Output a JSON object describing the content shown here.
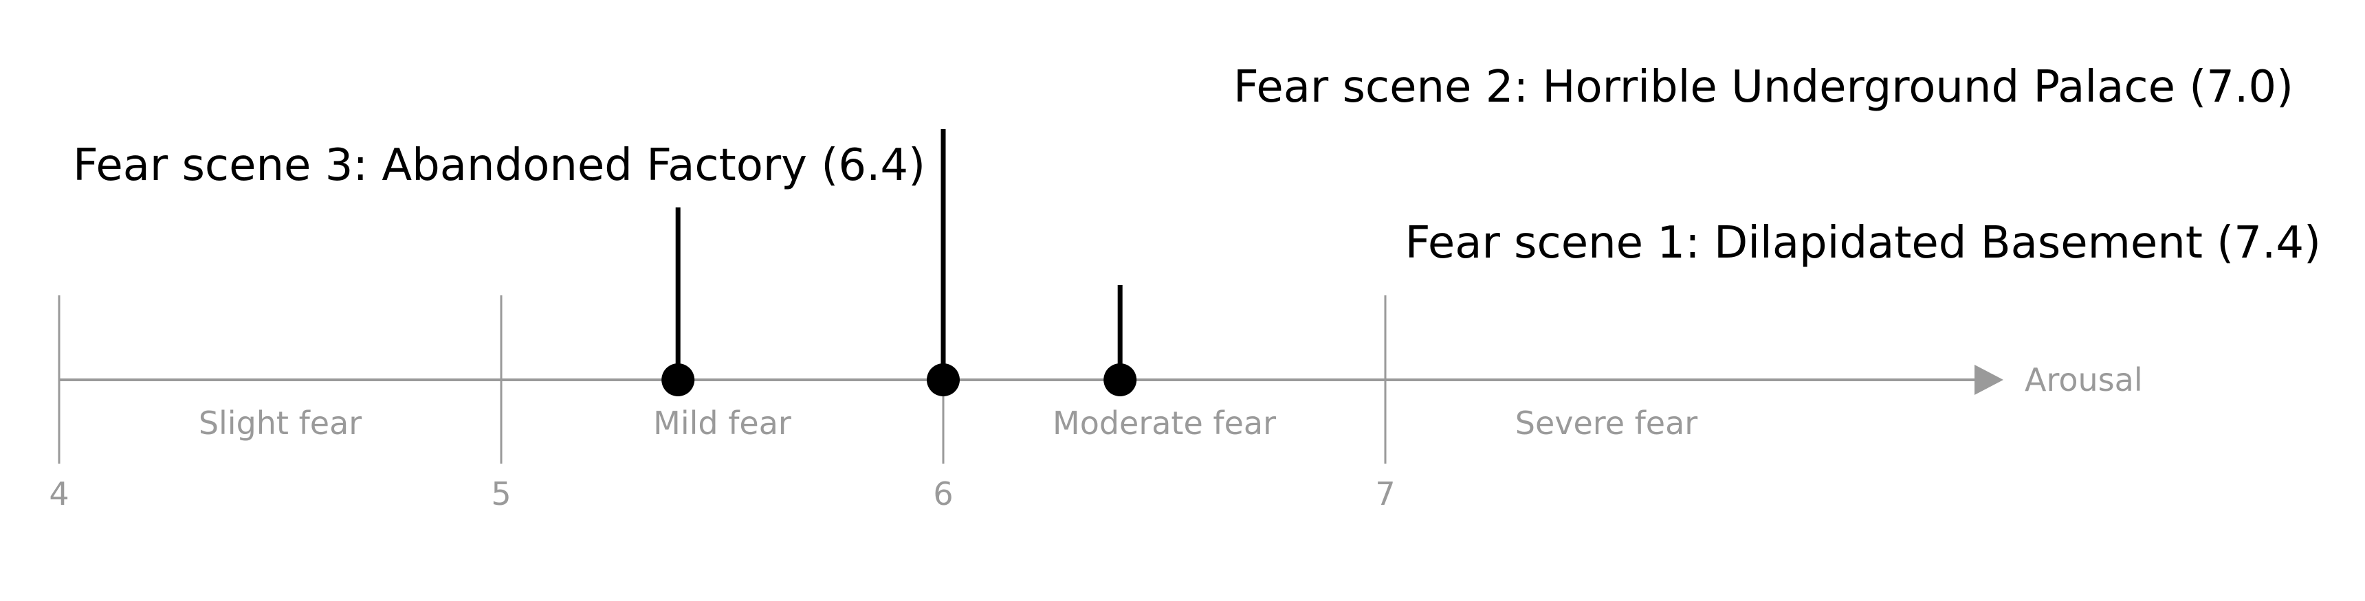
{
  "axis": {
    "title": "Arousal",
    "ticks": [
      "4",
      "5",
      "6",
      "7"
    ],
    "tick_values": [
      4,
      5,
      6,
      7
    ],
    "color": "#9a9a9a"
  },
  "bands": [
    {
      "label": "Slight fear",
      "from": 4,
      "to": 5
    },
    {
      "label": "Mild fear",
      "from": 5,
      "to": 6
    },
    {
      "label": "Moderate fear",
      "from": 6,
      "to": 7
    },
    {
      "label": "Severe fear",
      "from": 7,
      "to": 8
    }
  ],
  "scenes": [
    {
      "label": "Fear scene 3: Abandoned Factory (6.4)",
      "value": 6.4
    },
    {
      "label": "Fear scene 2: Horrible Underground Palace (7.0)",
      "value": 7.0
    },
    {
      "label": "Fear scene 1: Dilapidated Basement (7.4)",
      "value": 7.4
    }
  ],
  "marker_color": "#000000"
}
